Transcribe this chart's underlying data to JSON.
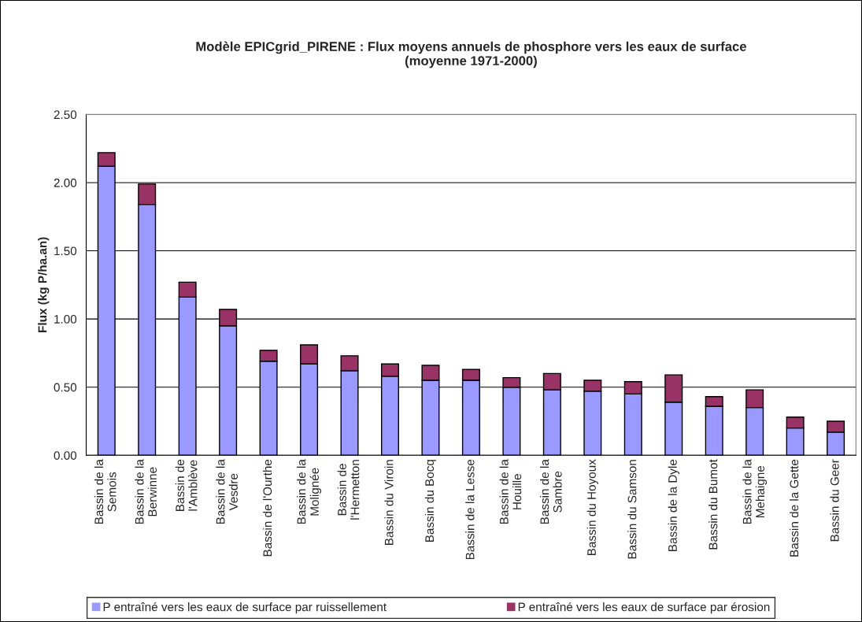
{
  "chart_data": {
    "type": "bar",
    "title": "Modèle EPICgrid_PIRENE : Flux moyens annuels de phosphore vers les eaux de surface\n(moyenne 1971-2000)",
    "ylabel": "Flux (kg P/ha.an)",
    "categories": [
      "Bassin de la\nSemois",
      "Bassin de la\nBerwinne",
      "Bassin de\nl'Amblève",
      "Bassin de la\nVesdre",
      "Bassin de l'Ourthe",
      "Bassin de la\nMolignée",
      "Bassin de\nl'Hermetton",
      "Bassin du Viroin",
      "Bassin du Bocq",
      "Bassin de la Lesse",
      "Bassin de la\nHouille",
      "Bassin de la\nSambre",
      "Bassin du Hoyoux",
      "Bassin du Samson",
      "Bassin de la Dyle",
      "Bassin du Bumot",
      "Bassin de la\nMehaigne",
      "Bassin de la Gette",
      "Bassin du Geer"
    ],
    "stacked": true,
    "series": [
      {
        "name": "P entraîné vers les eaux de surface par ruissellement",
        "color": "#9999ff",
        "values": [
          2.12,
          1.84,
          1.16,
          0.95,
          0.69,
          0.67,
          0.62,
          0.58,
          0.55,
          0.55,
          0.5,
          0.48,
          0.47,
          0.45,
          0.39,
          0.36,
          0.35,
          0.2,
          0.17
        ]
      },
      {
        "name": "P entraîné vers les eaux de surface par érosion",
        "color": "#993366",
        "values": [
          0.1,
          0.15,
          0.11,
          0.12,
          0.08,
          0.14,
          0.11,
          0.09,
          0.11,
          0.08,
          0.07,
          0.12,
          0.08,
          0.09,
          0.2,
          0.07,
          0.13,
          0.08,
          0.08
        ]
      }
    ],
    "ylim": [
      0,
      2.5
    ],
    "yticks": [
      {
        "value": 0,
        "label": "0.00"
      },
      {
        "value": 0.5,
        "label": "0.50"
      },
      {
        "value": 1.0,
        "label": "1.00"
      },
      {
        "value": 1.5,
        "label": "1.50"
      },
      {
        "value": 2.0,
        "label": "2.00"
      },
      {
        "value": 2.5,
        "label": "2.50"
      }
    ],
    "grid": "y",
    "legend": "bottom"
  }
}
